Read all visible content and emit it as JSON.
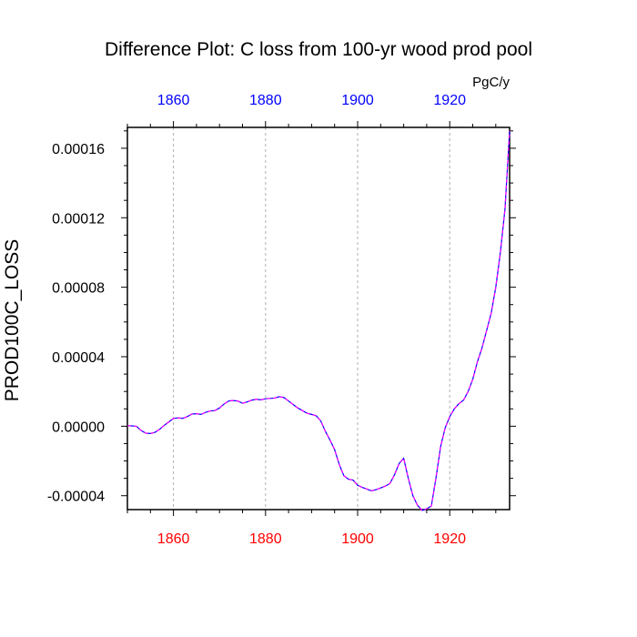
{
  "chart_data": {
    "type": "line",
    "title": "Difference Plot: C loss from 100-yr wood prod pool",
    "units": "PgC/y",
    "ylabel": "PROD100C_LOSS",
    "xlabel": "",
    "xlim": [
      1850,
      1933
    ],
    "ylim": [
      -4.8e-05,
      0.000172
    ],
    "x_ticks": [
      1860,
      1880,
      1900,
      1920
    ],
    "x_tick_labels": [
      "1860",
      "1880",
      "1900",
      "1920"
    ],
    "y_ticks": [
      -4e-05,
      0.0,
      4e-05,
      8e-05,
      0.00012,
      0.00016
    ],
    "y_tick_labels": [
      "-0.00004",
      "0.00000",
      "0.00004",
      "0.00008",
      "0.00012",
      "0.00016"
    ],
    "grid": "vertical dashed at x ticks",
    "colors": {
      "top_ticks": "#0000ff",
      "bottom_ticks": "#ff0000",
      "line_base": "#0000ff",
      "line_overlay": "#ff00ff"
    },
    "series": [
      {
        "x": [
          1850,
          1851,
          1852,
          1853,
          1854,
          1855,
          1856,
          1857,
          1858,
          1859,
          1860,
          1861,
          1862,
          1863,
          1864,
          1865,
          1866,
          1867,
          1868,
          1869,
          1870,
          1871,
          1872,
          1873,
          1874,
          1875,
          1876,
          1877,
          1878,
          1879,
          1880,
          1881,
          1882,
          1883,
          1884,
          1885,
          1886,
          1887,
          1888,
          1889,
          1890,
          1891,
          1892,
          1893,
          1894,
          1895,
          1896,
          1897,
          1898,
          1899,
          1900,
          1901,
          1902,
          1903,
          1904,
          1905,
          1906,
          1907,
          1908,
          1909,
          1910,
          1911,
          1912,
          1913,
          1914,
          1915,
          1916,
          1917,
          1918,
          1919,
          1920,
          1921,
          1922,
          1923,
          1924,
          1925,
          1926,
          1927,
          1928,
          1929,
          1930,
          1931,
          1932,
          1933
        ],
        "y": [
          3e-07,
          2e-07,
          -1e-07,
          -2.5e-06,
          -4e-06,
          -4.2e-06,
          -3.5e-06,
          -1.8e-06,
          5e-07,
          2.5e-06,
          4.5e-06,
          4.8e-06,
          4.5e-06,
          5.5e-06,
          7e-06,
          7.2e-06,
          6.8e-06,
          8e-06,
          8.8e-06,
          9e-06,
          1.05e-05,
          1.28e-05,
          1.45e-05,
          1.48e-05,
          1.45e-05,
          1.32e-05,
          1.4e-05,
          1.5e-05,
          1.55e-05,
          1.52e-05,
          1.58e-05,
          1.6e-05,
          1.62e-05,
          1.7e-05,
          1.65e-05,
          1.45e-05,
          1.25e-05,
          1.05e-05,
          9e-06,
          7.5e-06,
          6.8e-06,
          6e-06,
          3e-06,
          -3e-06,
          -8e-06,
          -1.35e-05,
          -2.2e-05,
          -2.85e-05,
          -3.05e-05,
          -3.1e-05,
          -3.4e-05,
          -3.52e-05,
          -3.62e-05,
          -3.72e-05,
          -3.65e-05,
          -3.55e-05,
          -3.45e-05,
          -3.3e-05,
          -2.8e-05,
          -2.15e-05,
          -1.85e-05,
          -3e-05,
          -4e-05,
          -4.55e-05,
          -4.85e-05,
          -4.75e-05,
          -4.6e-05,
          -3e-05,
          -1.2e-05,
          -1e-06,
          5.5e-06,
          1e-05,
          1.3e-05,
          1.5e-05,
          2e-05,
          2.7e-05,
          3.7e-05,
          4.5e-05,
          5.5e-05,
          6.5e-05,
          8e-05,
          0.0001,
          0.000125,
          0.00017
        ]
      }
    ]
  }
}
